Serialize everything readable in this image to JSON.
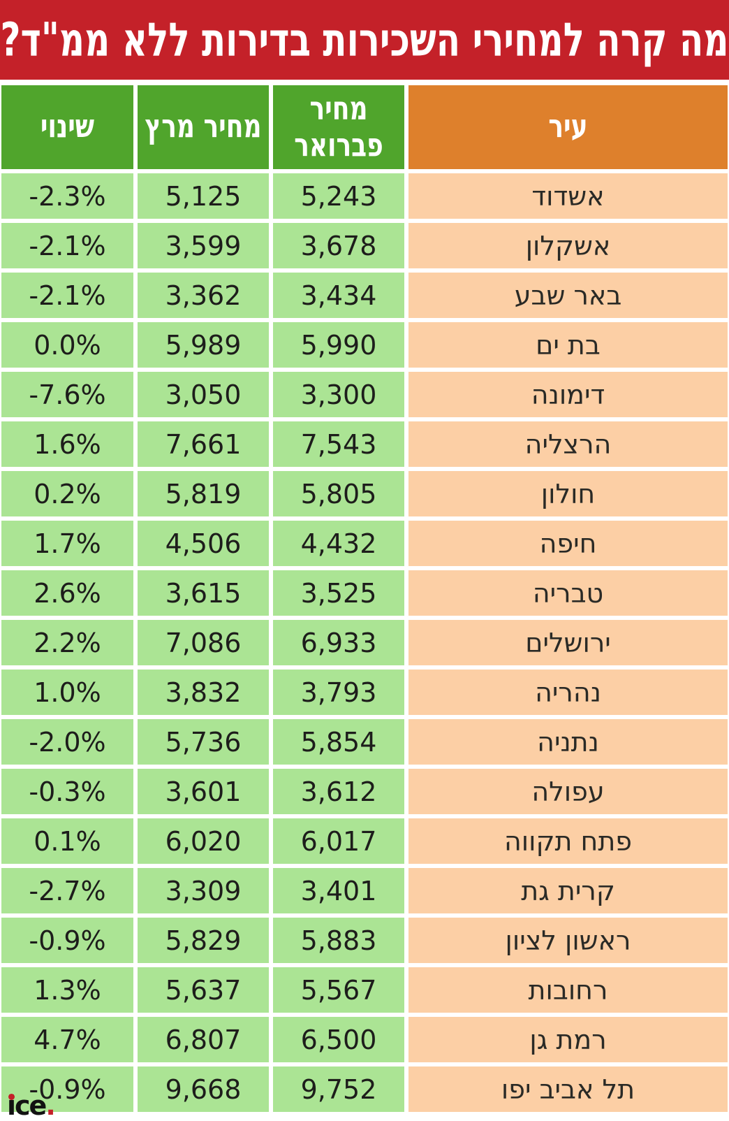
{
  "title": "מה קרה למחירי השכירות בדירות ללא ממ\"ד?",
  "headers": {
    "city": "עיר",
    "february": "מחיר פברואר",
    "march": "מחיר מרץ",
    "change": "שינוי"
  },
  "logo": {
    "text": "ice",
    "dot": "."
  },
  "colors": {
    "banner_red": "#c42129",
    "header_orange": "#de802c",
    "header_green": "#50a52c",
    "cell_light_green": "#abe494",
    "cell_peach": "#fccfa5"
  },
  "chart_data": {
    "type": "table",
    "title": "מה קרה למחירי השכירות בדירות ללא ממ\"ד?",
    "columns": [
      "עיר",
      "מחיר פברואר",
      "מחיר מרץ",
      "שינוי"
    ],
    "rows": [
      {
        "city": "אשדוד",
        "feb_price": 5243,
        "mar_price": 5125,
        "change_pct": -2.3
      },
      {
        "city": "אשקלון",
        "feb_price": 3678,
        "mar_price": 3599,
        "change_pct": -2.1
      },
      {
        "city": "באר שבע",
        "feb_price": 3434,
        "mar_price": 3362,
        "change_pct": -2.1
      },
      {
        "city": "בת ים",
        "feb_price": 5990,
        "mar_price": 5989,
        "change_pct": 0.0
      },
      {
        "city": "דימונה",
        "feb_price": 3300,
        "mar_price": 3050,
        "change_pct": -7.6
      },
      {
        "city": "הרצליה",
        "feb_price": 7543,
        "mar_price": 7661,
        "change_pct": 1.6
      },
      {
        "city": "חולון",
        "feb_price": 5805,
        "mar_price": 5819,
        "change_pct": 0.2
      },
      {
        "city": "חיפה",
        "feb_price": 4432,
        "mar_price": 4506,
        "change_pct": 1.7
      },
      {
        "city": "טבריה",
        "feb_price": 3525,
        "mar_price": 3615,
        "change_pct": 2.6
      },
      {
        "city": "ירושלים",
        "feb_price": 6933,
        "mar_price": 7086,
        "change_pct": 2.2
      },
      {
        "city": "נהריה",
        "feb_price": 3793,
        "mar_price": 3832,
        "change_pct": 1.0
      },
      {
        "city": "נתניה",
        "feb_price": 5854,
        "mar_price": 5736,
        "change_pct": -2.0
      },
      {
        "city": "עפולה",
        "feb_price": 3612,
        "mar_price": 3601,
        "change_pct": -0.3
      },
      {
        "city": "פתח תקווה",
        "feb_price": 6017,
        "mar_price": 6020,
        "change_pct": 0.1
      },
      {
        "city": "קרית גת",
        "feb_price": 3401,
        "mar_price": 3309,
        "change_pct": -2.7
      },
      {
        "city": "ראשון לציון",
        "feb_price": 5883,
        "mar_price": 5829,
        "change_pct": -0.9
      },
      {
        "city": "רחובות",
        "feb_price": 5567,
        "mar_price": 5637,
        "change_pct": 1.3
      },
      {
        "city": "רמת גן",
        "feb_price": 6500,
        "mar_price": 6807,
        "change_pct": 4.7
      },
      {
        "city": "תל אביב יפו",
        "feb_price": 9752,
        "mar_price": 9668,
        "change_pct": -0.9
      }
    ]
  }
}
